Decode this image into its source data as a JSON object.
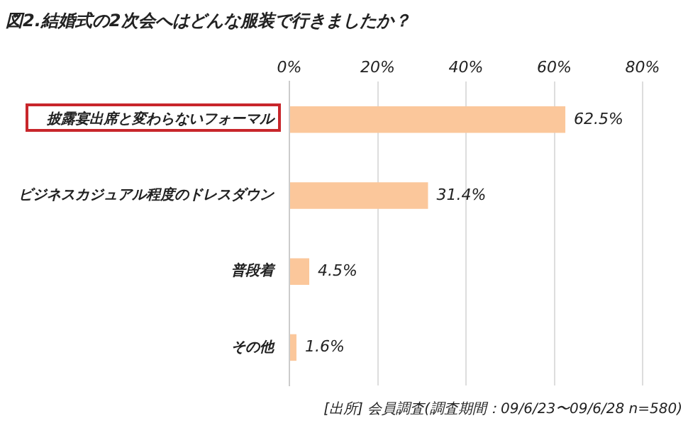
{
  "chart_data": {
    "type": "bar",
    "orientation": "horizontal",
    "title": "図2.結婚式の2次会へはどんな服装で行きましたか？",
    "categories": [
      "披露宴出席と変わらないフォーマル",
      "ビジネスカジュアル程度のドレスダウン",
      "普段着",
      "その他"
    ],
    "values": [
      62.5,
      31.4,
      4.5,
      1.6
    ],
    "color": "#fbc79b",
    "value_labels": [
      "62.5%",
      "31.4%",
      "4.5%",
      "1.6%"
    ],
    "xlim": [
      0,
      80
    ],
    "xticks": [
      {
        "value": 0,
        "label": "0%"
      },
      {
        "value": 20,
        "label": "20%"
      },
      {
        "value": 40,
        "label": "40%"
      },
      {
        "value": 60,
        "label": "60%"
      },
      {
        "value": 80,
        "label": "80%"
      }
    ],
    "grid": "x",
    "legend": false,
    "annotations": [
      "[出所] 会員調査(調査期間：09/6/23〜09/6/28 n=580)"
    ]
  }
}
